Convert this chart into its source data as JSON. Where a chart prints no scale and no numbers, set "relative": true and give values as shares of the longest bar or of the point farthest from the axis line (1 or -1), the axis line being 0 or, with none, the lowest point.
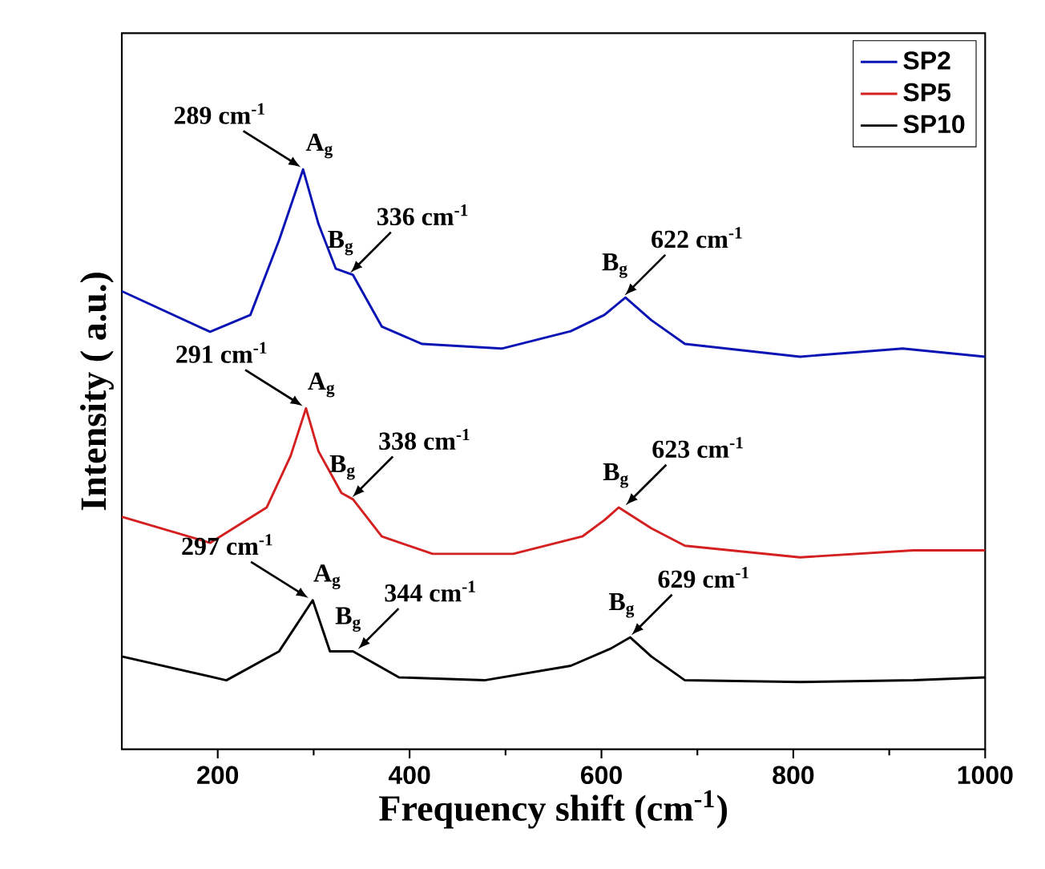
{
  "chart_data": {
    "type": "line",
    "relative": true,
    "xlabel": "Frequency shift (cm$^{-1}$)",
    "ylabel": "Intensity ( a.u.)",
    "xlim": [
      100,
      1000
    ],
    "xticks": [
      200,
      400,
      600,
      800,
      1000
    ],
    "legend": "top right",
    "marker": "none",
    "line_style": "solid",
    "grid": false,
    "series": [
      {
        "name": "SP2",
        "color": "#0a14b4",
        "x": [
          100,
          192,
          234,
          264,
          289,
          305,
          323,
          341,
          371,
          413,
          496,
          568,
          603,
          625,
          652,
          687,
          807,
          914,
          1000
        ],
        "values": [
          0.79,
          0.72,
          0.749,
          0.878,
          1.0,
          0.906,
          0.829,
          0.818,
          0.729,
          0.699,
          0.691,
          0.721,
          0.749,
          0.779,
          0.74,
          0.699,
          0.677,
          0.691,
          0.677
        ]
      },
      {
        "name": "SP5",
        "color": "#d42020",
        "x": [
          100,
          192,
          251,
          276,
          292,
          305,
          329,
          341,
          371,
          424,
          508,
          580,
          603,
          618,
          652,
          687,
          807,
          925,
          1000
        ],
        "values": [
          0.401,
          0.356,
          0.417,
          0.506,
          0.588,
          0.514,
          0.442,
          0.431,
          0.367,
          0.337,
          0.337,
          0.367,
          0.395,
          0.417,
          0.381,
          0.351,
          0.331,
          0.343,
          0.343
        ]
      },
      {
        "name": "SP10",
        "color": "#000000",
        "x": [
          100,
          209,
          264,
          299,
          317,
          341,
          389,
          478,
          568,
          610,
          630,
          652,
          687,
          807,
          925,
          1000
        ],
        "values": [
          0.16,
          0.119,
          0.169,
          0.257,
          0.169,
          0.169,
          0.124,
          0.119,
          0.144,
          0.174,
          0.193,
          0.16,
          0.119,
          0.116,
          0.119,
          0.124
        ]
      }
    ],
    "annotations": [
      {
        "text": "289 cm$^{-1}$",
        "x": 289,
        "y": 1.0
      },
      {
        "text": "A$_{g}$",
        "x": 289,
        "y": 1.0
      },
      {
        "text": "336 cm$^{-1}$",
        "x": 336,
        "y": 0.818
      },
      {
        "text": "B$_{g}$",
        "x": 336,
        "y": 0.818
      },
      {
        "text": "622 cm$^{-1}$",
        "x": 622,
        "y": 0.779
      },
      {
        "text": "B$_{g}$",
        "x": 622,
        "y": 0.779
      },
      {
        "text": "291 cm$^{-1}$",
        "x": 291,
        "y": 0.588
      },
      {
        "text": "A$_{g}$",
        "x": 291,
        "y": 0.588
      },
      {
        "text": "338 cm$^{-1}$",
        "x": 338,
        "y": 0.431
      },
      {
        "text": "B$_{g}$",
        "x": 338,
        "y": 0.431
      },
      {
        "text": "623 cm$^{-1}$",
        "x": 623,
        "y": 0.417
      },
      {
        "text": "B$_{g}$",
        "x": 623,
        "y": 0.417
      },
      {
        "text": "297 cm$^{-1}$",
        "x": 297,
        "y": 0.257
      },
      {
        "text": "A$_{g}$",
        "x": 297,
        "y": 0.257
      },
      {
        "text": "344 cm$^{-1}$",
        "x": 344,
        "y": 0.169
      },
      {
        "text": "B$_{g}$",
        "x": 344,
        "y": 0.169
      },
      {
        "text": "629 cm$^{-1}$",
        "x": 629,
        "y": 0.193
      },
      {
        "text": "B$_{g}$",
        "x": 629,
        "y": 0.193
      }
    ]
  }
}
